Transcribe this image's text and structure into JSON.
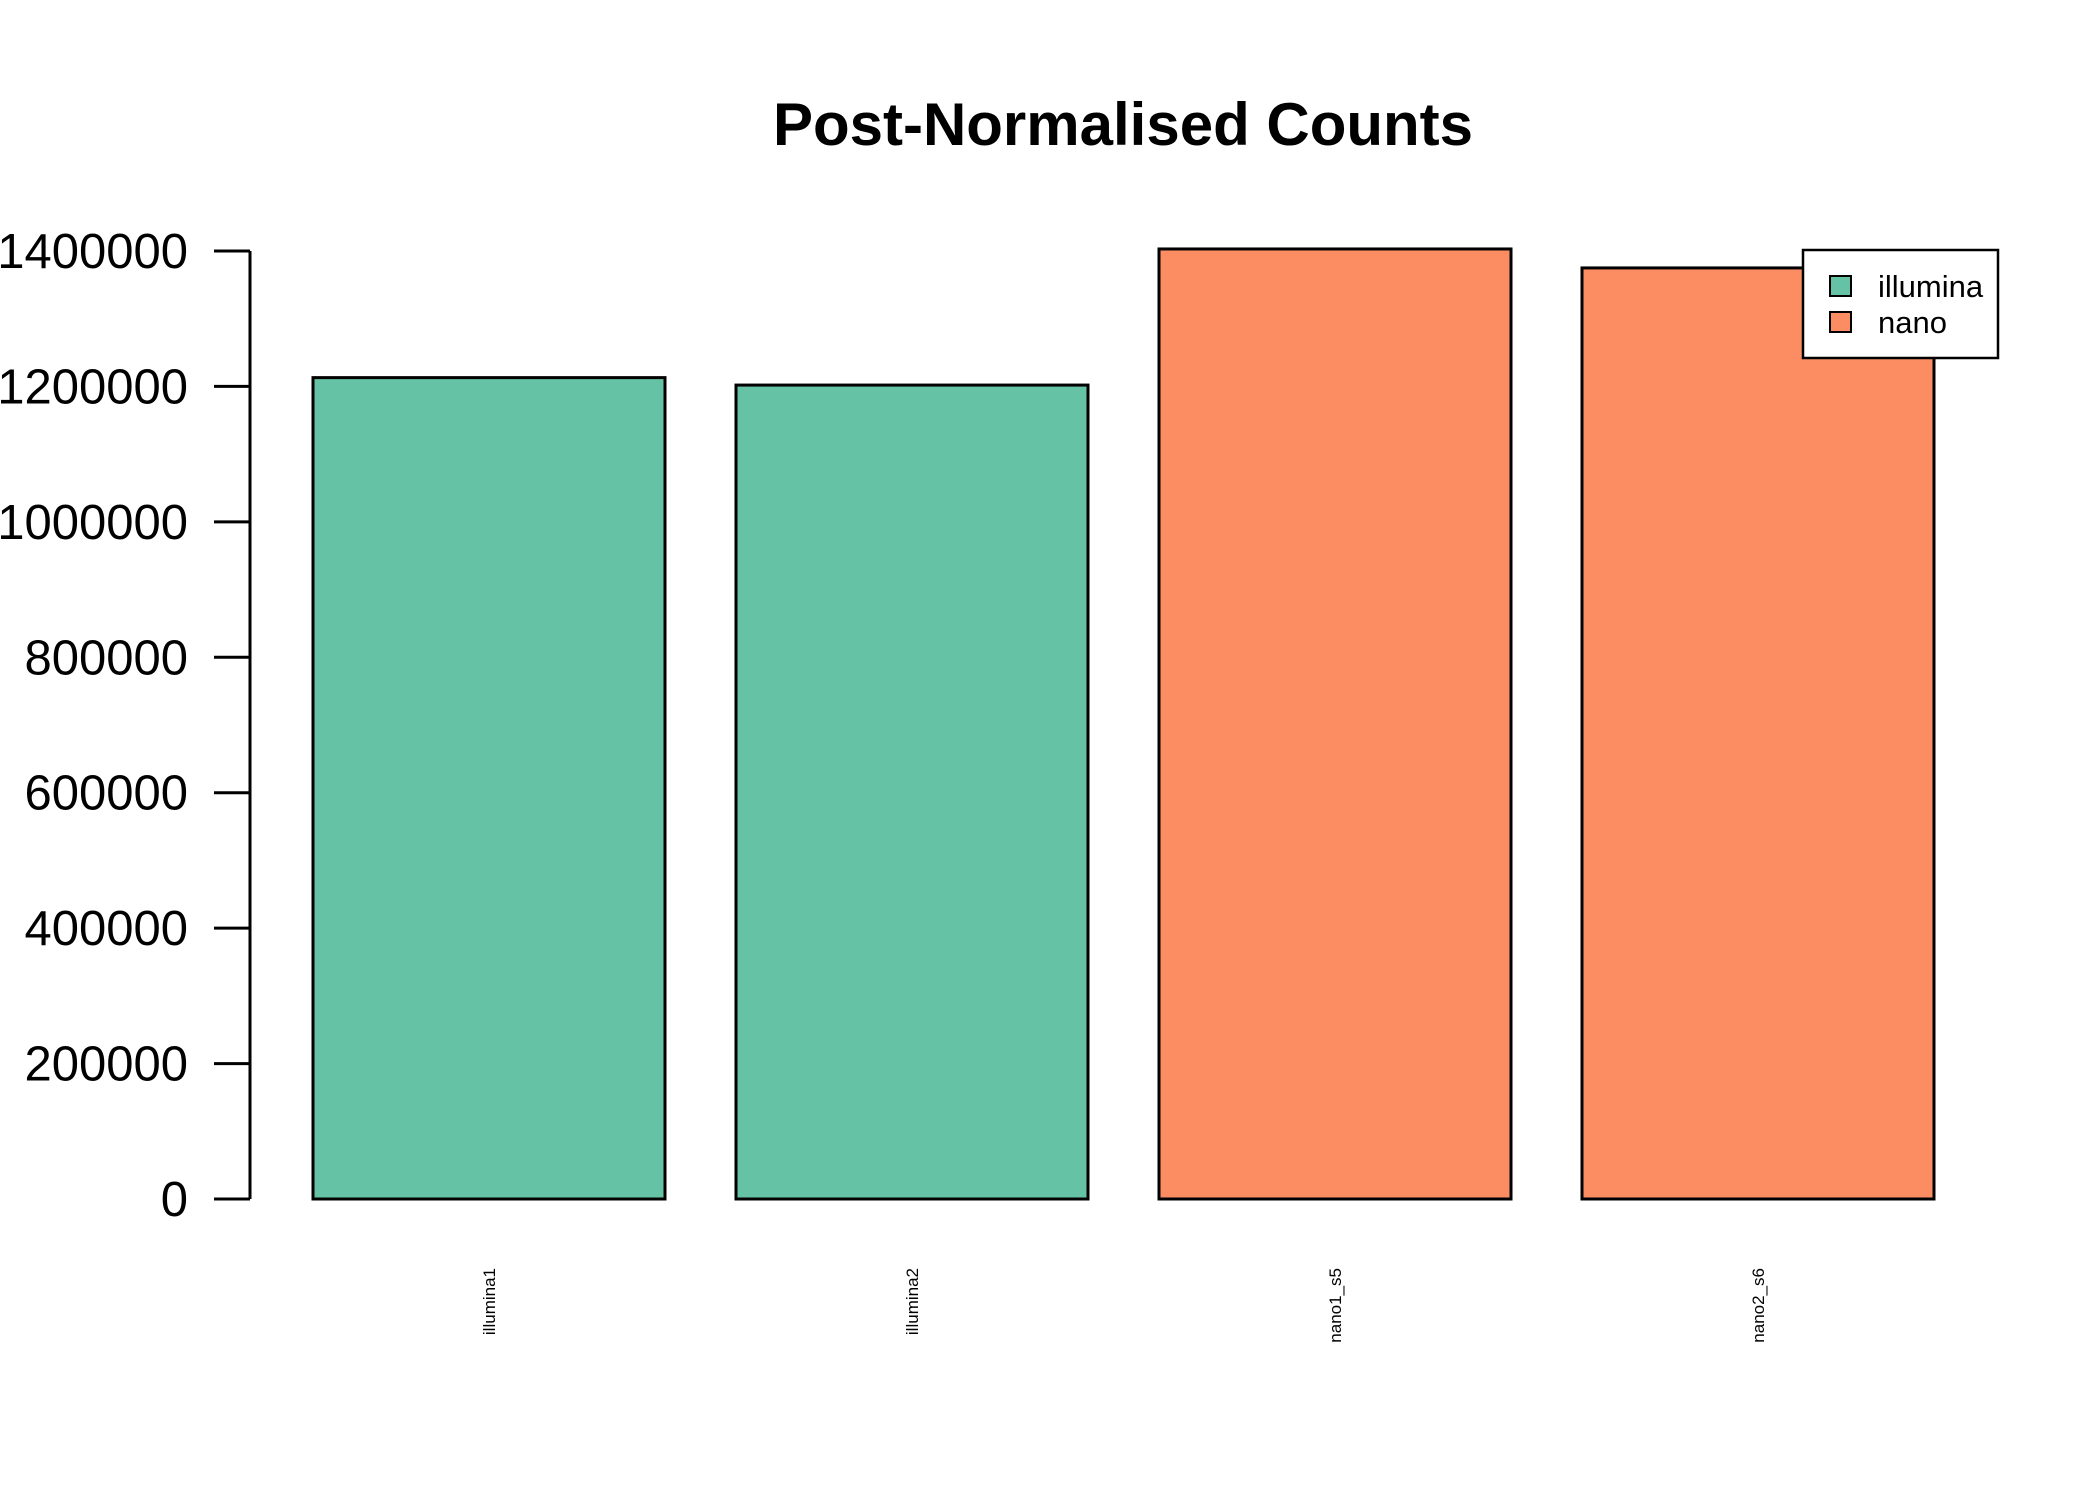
{
  "chart_data": {
    "type": "bar",
    "title": "Post-Normalised Counts",
    "xlabel": "",
    "ylabel": "",
    "categories": [
      "illumina1",
      "illumina2",
      "nano1_s5",
      "nano2_s6"
    ],
    "values": [
      1213000,
      1202000,
      1403000,
      1375000
    ],
    "groups": [
      "illumina",
      "illumina",
      "nano",
      "nano"
    ],
    "ylim": [
      0,
      1400000
    ],
    "yticks": [
      0,
      200000,
      400000,
      600000,
      800000,
      1000000,
      1200000,
      1400000
    ],
    "ytick_labels": [
      "0",
      "200000",
      "400000",
      "600000",
      "800000",
      "1000000",
      "1200000",
      "1400000"
    ],
    "grid": false,
    "legend": {
      "position": "top-right",
      "entries": [
        {
          "label": "illumina",
          "color": "#66C2A5"
        },
        {
          "label": "nano",
          "color": "#FC8D62"
        }
      ]
    }
  }
}
